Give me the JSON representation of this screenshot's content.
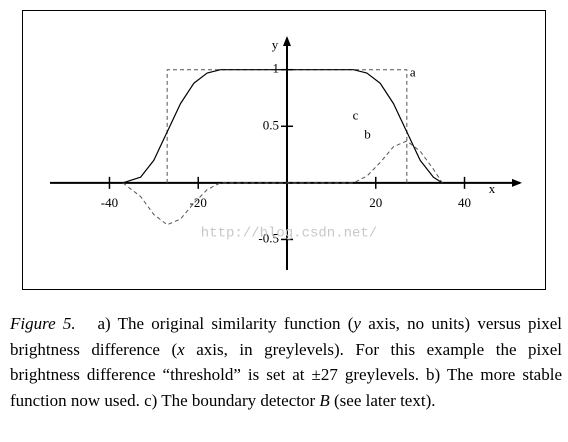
{
  "chart_data": {
    "type": "line",
    "x_label": "x",
    "y_label": "y",
    "xlim": [
      -53.4,
      52.5
    ],
    "ylim": [
      -0.77,
      1.28
    ],
    "xticks": [
      -40,
      -20,
      20,
      40
    ],
    "yticks": [
      -0.5,
      0.5,
      1
    ],
    "watermark": "http://blog.csdn.net/",
    "series": [
      {
        "name": "a",
        "color": "#555555",
        "dashed": true,
        "x": [
          -27,
          -27,
          27,
          27
        ],
        "values": [
          0,
          1,
          1,
          0
        ]
      },
      {
        "name": "b",
        "color": "#000000",
        "dashed": false,
        "x": [
          -37,
          -33,
          -30,
          -27,
          -24,
          -21,
          -18,
          -15,
          15,
          18,
          21,
          24,
          27,
          30,
          33,
          35
        ],
        "values": [
          0,
          0.05,
          0.2,
          0.45,
          0.7,
          0.88,
          0.97,
          1,
          1,
          0.97,
          0.88,
          0.7,
          0.45,
          0.2,
          0.05,
          0
        ]
      },
      {
        "name": "c",
        "color": "#555555",
        "dashed": true,
        "x": [
          -37,
          -33,
          -30,
          -27,
          -24,
          -21,
          -18,
          -15,
          15,
          18,
          21,
          24,
          27,
          30,
          33,
          35
        ],
        "values": [
          0,
          -0.12,
          -0.28,
          -0.37,
          -0.32,
          -0.18,
          -0.06,
          0,
          0,
          0.06,
          0.18,
          0.32,
          0.37,
          0.28,
          0.12,
          0
        ]
      }
    ]
  },
  "caption": {
    "label": "Figure 5.",
    "parts": [
      "a) The original similarity function (",
      "y",
      " axis, no units) versus pixel brightness difference (",
      "x",
      " axis, in greylevels). For this example the pixel brightness difference “threshold” is set at ±27 greylevels. b) The more stable function now used. c) The boundary detector ",
      "B",
      " (see later text)."
    ]
  }
}
